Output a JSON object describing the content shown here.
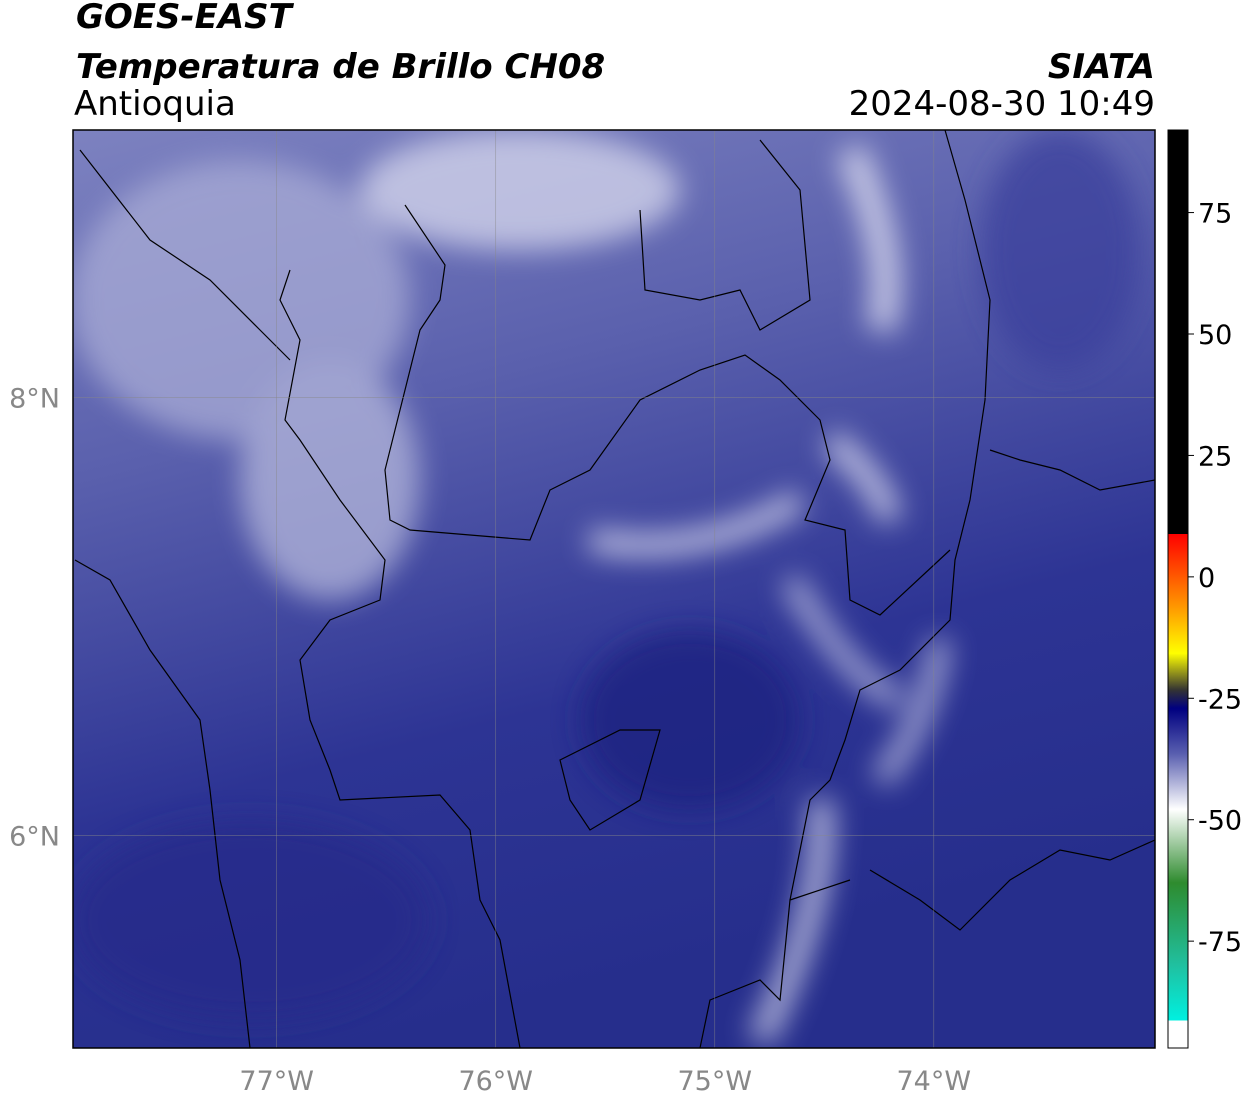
{
  "header": {
    "satellite": "GOES-EAST",
    "product": "Temperatura de Brillo CH08",
    "region": "Antioquia",
    "source": "SIATA",
    "datetime": "2024-08-30 10:49"
  },
  "map": {
    "xlim": [
      -77.93,
      -72.99
    ],
    "ylim": [
      5.03,
      9.22
    ],
    "xticks": [
      {
        "value": -77,
        "label": "77°W"
      },
      {
        "value": -76,
        "label": "76°W"
      },
      {
        "value": -75,
        "label": "75°W"
      },
      {
        "value": -74,
        "label": "74°W"
      }
    ],
    "yticks": [
      {
        "value": 6,
        "label": "6°N"
      },
      {
        "value": 8,
        "label": "8°N"
      }
    ],
    "grid": true
  },
  "colorbar": {
    "lim": [
      -97,
      92
    ],
    "ticks": [
      75,
      50,
      25,
      0,
      -25,
      -50,
      -75
    ]
  }
}
